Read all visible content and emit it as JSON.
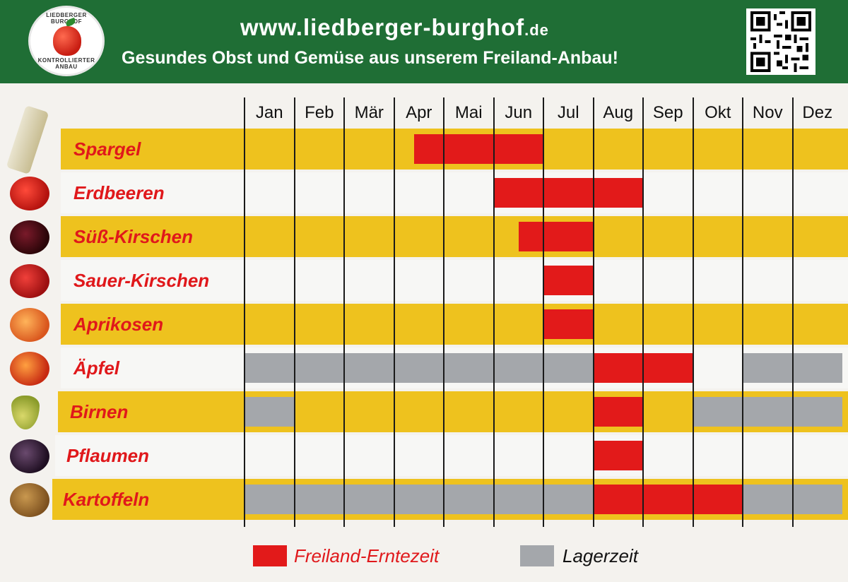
{
  "header": {
    "url_main": "www.liedberger-burghof",
    "url_tld": ".de",
    "slogan": "Gesundes Obst und Gemüse aus unserem Freiland-Anbau!",
    "logo_text_top": "LIEDBERGER BURGHOF",
    "logo_text_bottom": "KONTROLLIERTER ANBAU"
  },
  "colors": {
    "header_green": "#1f6e35",
    "row_yellow": "#eec21e",
    "harvest_red": "#e21a1a",
    "storage_gray": "#a4a7ab",
    "label_red": "#e0181b"
  },
  "chart_data": {
    "type": "table",
    "months": [
      "Jan",
      "Feb",
      "Mär",
      "Apr",
      "Mai",
      "Jun",
      "Jul",
      "Aug",
      "Sep",
      "Okt",
      "Nov",
      "Dez"
    ],
    "rows": [
      {
        "name": "Spargel",
        "icon": "asparagus-icon",
        "harvest": [
          [
            4.4,
            7.0
          ]
        ],
        "storage": []
      },
      {
        "name": "Erdbeeren",
        "icon": "strawberry-icon",
        "harvest": [
          [
            6.0,
            9.0
          ]
        ],
        "storage": []
      },
      {
        "name": "Süß-Kirschen",
        "icon": "sweet-cherry-icon",
        "harvest": [
          [
            6.5,
            8.0
          ]
        ],
        "storage": []
      },
      {
        "name": "Sauer-Kirschen",
        "icon": "sour-cherry-icon",
        "harvest": [
          [
            7.0,
            8.0
          ]
        ],
        "storage": []
      },
      {
        "name": "Aprikosen",
        "icon": "apricot-icon",
        "harvest": [
          [
            7.0,
            8.0
          ]
        ],
        "storage": []
      },
      {
        "name": "Äpfel",
        "icon": "apple-icon",
        "harvest": [
          [
            8.0,
            10.0
          ]
        ],
        "storage": [
          [
            1.0,
            8.0
          ],
          [
            11.0,
            13.0
          ]
        ]
      },
      {
        "name": "Birnen",
        "icon": "pear-icon",
        "harvest": [
          [
            8.0,
            9.0
          ]
        ],
        "storage": [
          [
            1.0,
            2.0
          ],
          [
            10.0,
            13.0
          ]
        ]
      },
      {
        "name": "Pflaumen",
        "icon": "plum-icon",
        "harvest": [
          [
            8.0,
            9.0
          ]
        ],
        "storage": []
      },
      {
        "name": "Kartoffeln",
        "icon": "potato-icon",
        "harvest": [
          [
            8.0,
            11.0
          ]
        ],
        "storage": [
          [
            1.0,
            8.0
          ],
          [
            11.0,
            13.0
          ]
        ]
      }
    ],
    "legend": [
      {
        "label": "Freiland-Erntezeit",
        "color": "#e21a1a"
      },
      {
        "label": "Lagerzeit",
        "color": "#a4a7ab"
      }
    ]
  }
}
